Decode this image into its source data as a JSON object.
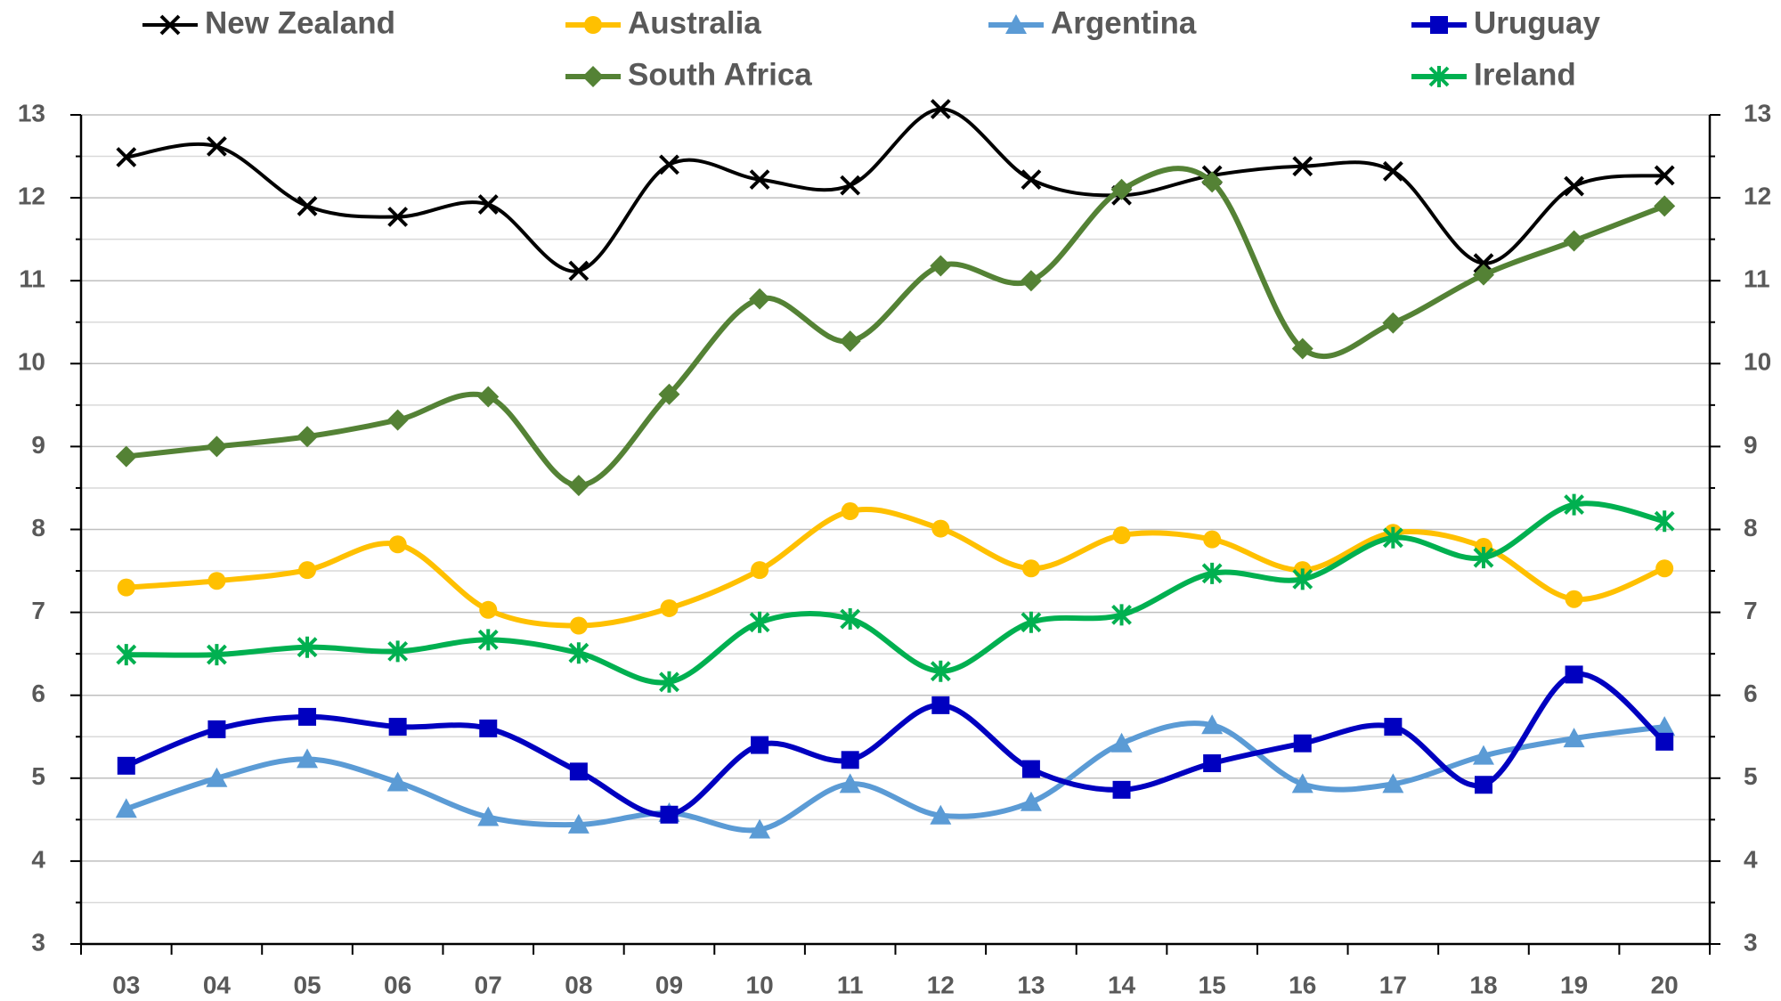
{
  "chart_data": {
    "type": "line",
    "categories": [
      "03",
      "04",
      "05",
      "06",
      "07",
      "08",
      "09",
      "10",
      "11",
      "12",
      "13",
      "14",
      "15",
      "16",
      "17",
      "18",
      "19",
      "20"
    ],
    "series": [
      {
        "name": "New Zealand",
        "color": "#000000",
        "marker": "x",
        "values": [
          12.49,
          12.62,
          11.9,
          11.77,
          11.92,
          11.12,
          12.4,
          12.22,
          12.15,
          13.07,
          12.22,
          12.03,
          12.27,
          12.38,
          12.32,
          11.21,
          12.14,
          12.27
        ]
      },
      {
        "name": "Australia",
        "color": "#FFC000",
        "marker": "circle",
        "values": [
          7.3,
          7.38,
          7.51,
          7.82,
          7.03,
          6.84,
          7.05,
          7.51,
          8.22,
          8.01,
          7.53,
          7.93,
          7.88,
          7.51,
          7.96,
          7.79,
          7.16,
          7.53
        ]
      },
      {
        "name": "Argentina",
        "color": "#5B9BD5",
        "marker": "triangle",
        "values": [
          4.63,
          5.0,
          5.23,
          4.95,
          4.53,
          4.44,
          4.58,
          4.38,
          4.93,
          4.55,
          4.71,
          5.42,
          5.64,
          4.93,
          4.93,
          5.27,
          5.48,
          5.62
        ]
      },
      {
        "name": "Uruguay",
        "color": "#0000C0",
        "marker": "square",
        "values": [
          5.15,
          5.59,
          5.74,
          5.62,
          5.6,
          5.08,
          4.56,
          5.4,
          5.22,
          5.88,
          5.11,
          4.86,
          5.18,
          5.42,
          5.62,
          4.92,
          6.25,
          5.44
        ]
      },
      {
        "name": "South Africa",
        "color": "#548235",
        "marker": "diamond",
        "values": [
          8.88,
          9.0,
          9.12,
          9.32,
          9.6,
          8.53,
          9.63,
          10.78,
          10.27,
          11.18,
          11.0,
          12.1,
          12.19,
          10.18,
          10.49,
          11.07,
          11.48,
          11.9
        ]
      },
      {
        "name": "Ireland",
        "color": "#00B050",
        "marker": "asterisk",
        "values": [
          6.49,
          6.49,
          6.58,
          6.53,
          6.67,
          6.51,
          6.16,
          6.88,
          6.92,
          6.29,
          6.88,
          6.97,
          7.47,
          7.4,
          7.9,
          7.66,
          8.3,
          8.1
        ]
      }
    ],
    "ylim": [
      3,
      13
    ],
    "yticks": [
      3,
      4,
      5,
      6,
      7,
      8,
      9,
      10,
      11,
      12,
      13
    ],
    "minor_yticks": [
      3.5,
      4.5,
      5.5,
      6.5,
      7.5,
      8.5,
      9.5,
      10.5,
      11.5,
      12.5
    ],
    "grid": true,
    "smooth": true,
    "legend": "top"
  }
}
